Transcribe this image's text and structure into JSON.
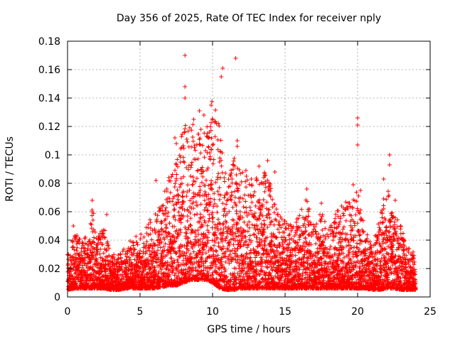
{
  "chart_data": {
    "type": "scatter",
    "title": "Day 356 of 2025, Rate Of TEC Index for receiver nply",
    "xlabel": "GPS time / hours",
    "ylabel": "ROTI / TECUs",
    "xlim": [
      0,
      25
    ],
    "ylim": [
      0,
      0.18
    ],
    "xticks": [
      "0",
      "5",
      "10",
      "15",
      "20",
      "25"
    ],
    "yticks": [
      "0",
      "0.02",
      "0.04",
      "0.06",
      "0.08",
      "0.1",
      "0.12",
      "0.14",
      "0.16",
      "0.18"
    ],
    "grid": true,
    "marker": "plus",
    "color": "#ff0000",
    "series": [
      {
        "values_note_x_hours_y_tecu": "sampled envelope profile",
        "profile": [
          [
            0.0,
            0.005,
            0.03
          ],
          [
            0.5,
            0.006,
            0.045
          ],
          [
            1.0,
            0.006,
            0.042
          ],
          [
            1.5,
            0.006,
            0.045
          ],
          [
            1.7,
            0.006,
            0.068
          ],
          [
            2.0,
            0.006,
            0.04
          ],
          [
            2.5,
            0.006,
            0.05
          ],
          [
            3.0,
            0.005,
            0.03
          ],
          [
            3.5,
            0.005,
            0.03
          ],
          [
            4.0,
            0.006,
            0.035
          ],
          [
            4.5,
            0.006,
            0.042
          ],
          [
            5.0,
            0.006,
            0.045
          ],
          [
            5.5,
            0.006,
            0.05
          ],
          [
            6.0,
            0.006,
            0.062
          ],
          [
            6.5,
            0.007,
            0.068
          ],
          [
            7.0,
            0.008,
            0.085
          ],
          [
            7.5,
            0.008,
            0.095
          ],
          [
            8.0,
            0.01,
            0.12
          ],
          [
            8.5,
            0.012,
            0.125
          ],
          [
            9.0,
            0.012,
            0.12
          ],
          [
            9.5,
            0.012,
            0.115
          ],
          [
            10.0,
            0.01,
            0.14
          ],
          [
            10.5,
            0.006,
            0.12
          ],
          [
            11.0,
            0.005,
            0.08
          ],
          [
            11.5,
            0.005,
            0.1
          ],
          [
            12.0,
            0.006,
            0.09
          ],
          [
            12.5,
            0.006,
            0.085
          ],
          [
            13.0,
            0.006,
            0.085
          ],
          [
            13.5,
            0.006,
            0.09
          ],
          [
            14.0,
            0.006,
            0.08
          ],
          [
            14.5,
            0.006,
            0.06
          ],
          [
            15.0,
            0.006,
            0.055
          ],
          [
            15.5,
            0.006,
            0.05
          ],
          [
            16.0,
            0.006,
            0.06
          ],
          [
            16.5,
            0.006,
            0.07
          ],
          [
            17.0,
            0.006,
            0.05
          ],
          [
            17.5,
            0.006,
            0.06
          ],
          [
            18.0,
            0.006,
            0.05
          ],
          [
            18.5,
            0.006,
            0.06
          ],
          [
            19.0,
            0.006,
            0.065
          ],
          [
            19.5,
            0.006,
            0.07
          ],
          [
            20.0,
            0.006,
            0.08
          ],
          [
            20.5,
            0.006,
            0.05
          ],
          [
            21.0,
            0.005,
            0.035
          ],
          [
            21.5,
            0.005,
            0.055
          ],
          [
            22.0,
            0.006,
            0.08
          ],
          [
            22.5,
            0.006,
            0.06
          ],
          [
            23.0,
            0.005,
            0.05
          ],
          [
            23.5,
            0.005,
            0.035
          ],
          [
            24.0,
            0.005,
            0.03
          ]
        ],
        "spikes": [
          [
            8.1,
            0.17
          ],
          [
            11.6,
            0.168
          ],
          [
            10.7,
            0.161
          ],
          [
            10.6,
            0.155
          ],
          [
            8.1,
            0.148
          ],
          [
            8.1,
            0.14
          ],
          [
            9.9,
            0.135
          ],
          [
            20.0,
            0.126
          ],
          [
            20.0,
            0.121
          ],
          [
            8.7,
            0.125
          ],
          [
            9.4,
            0.128
          ],
          [
            11.7,
            0.11
          ],
          [
            11.7,
            0.106
          ],
          [
            20.0,
            0.107
          ],
          [
            22.2,
            0.1
          ],
          [
            22.2,
            0.093
          ],
          [
            13.8,
            0.096
          ],
          [
            19.7,
            0.079
          ],
          [
            20.2,
            0.075
          ],
          [
            16.5,
            0.076
          ],
          [
            1.7,
            0.068
          ],
          [
            2.7,
            0.058
          ],
          [
            0.4,
            0.05
          ],
          [
            6.1,
            0.082
          ],
          [
            7.4,
            0.112
          ],
          [
            7.5,
            0.108
          ],
          [
            9.1,
            0.131
          ],
          [
            9.7,
            0.112
          ],
          [
            11.2,
            0.086
          ],
          [
            12.3,
            0.089
          ],
          [
            13.2,
            0.092
          ],
          [
            14.3,
            0.088
          ],
          [
            21.8,
            0.083
          ],
          [
            22.6,
            0.068
          ],
          [
            17.5,
            0.066
          ],
          [
            18.9,
            0.064
          ]
        ]
      }
    ]
  }
}
